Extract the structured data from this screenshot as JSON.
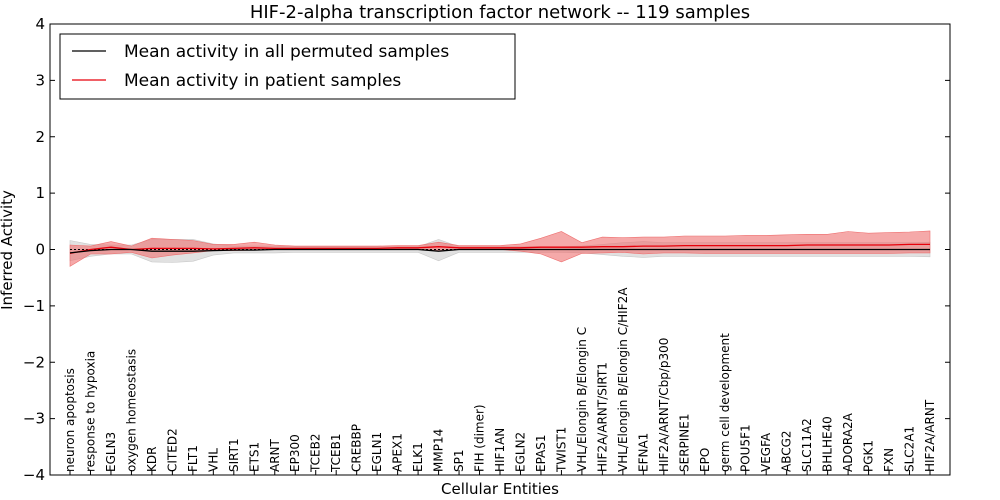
{
  "chart_data": {
    "type": "line",
    "title": "HIF-2-alpha transcription factor network -- 119 samples",
    "xlabel": "Cellular Entities",
    "ylabel": "Inferred Activity",
    "ylim": [
      -4,
      4
    ],
    "yticks": [
      "4",
      "3",
      "2",
      "1",
      "0",
      "−1",
      "−2",
      "−3",
      "−4"
    ],
    "ytick_values": [
      4,
      3,
      2,
      1,
      0,
      -1,
      -2,
      -3,
      -4
    ],
    "legend_position": "top-left",
    "categories": [
      "neuron apoptosis",
      "response to hypoxia",
      "EGLN3",
      "oxygen homeostasis",
      "KDR",
      "CITED2",
      "FLT1",
      "VHL",
      "SIRT1",
      "ETS1",
      "ARNT",
      "EP300",
      "TCEB2",
      "TCEB1",
      "CREBBP",
      "EGLN1",
      "APEX1",
      "ELK1",
      "MMP14",
      "SP1",
      "FIH (dimer)",
      "HIF1AN",
      "EGLN2",
      "EPAS1",
      "TWIST1",
      "VHL/Elongin B/Elongin C",
      "HIF2A/ARNT/SIRT1",
      "VHL/Elongin B/Elongin C/HIF2A",
      "EFNA1",
      "HIF2A/ARNT/Cbp/p300",
      "SERPINE1",
      "EPO",
      "germ cell development",
      "POU5F1",
      "VEGFA",
      "ABCG2",
      "SLC11A2",
      "BHLHE40",
      "ADORA2A",
      "PGK1",
      "FXN",
      "SLC2A1",
      "HIF2A/ARNT"
    ],
    "series": [
      {
        "name": "Mean activity in all permuted samples",
        "color": "#000000",
        "band_color": "#c8c8c8",
        "values": [
          -0.06,
          -0.02,
          0.0,
          0.0,
          -0.03,
          -0.03,
          -0.03,
          -0.02,
          -0.01,
          -0.01,
          0.0,
          0.0,
          0.0,
          0.0,
          0.0,
          0.0,
          0.0,
          0.0,
          -0.03,
          0.0,
          0.0,
          0.0,
          0.0,
          0.0,
          0.0,
          0.0,
          0.0,
          0.0,
          0.0,
          0.0,
          0.0,
          0.0,
          0.0,
          0.0,
          0.0,
          0.0,
          0.0,
          0.0,
          0.0,
          0.0,
          0.0,
          0.0,
          0.0
        ],
        "lower": [
          -0.2,
          -0.12,
          -0.08,
          -0.08,
          -0.22,
          -0.23,
          -0.21,
          -0.1,
          -0.06,
          -0.06,
          -0.06,
          -0.05,
          -0.05,
          -0.05,
          -0.05,
          -0.05,
          -0.05,
          -0.05,
          -0.2,
          -0.05,
          -0.05,
          -0.05,
          -0.05,
          -0.05,
          -0.05,
          -0.06,
          -0.09,
          -0.12,
          -0.14,
          -0.12,
          -0.12,
          -0.12,
          -0.12,
          -0.12,
          -0.12,
          -0.12,
          -0.12,
          -0.12,
          -0.12,
          -0.12,
          -0.12,
          -0.12,
          -0.13
        ],
        "upper": [
          0.16,
          0.09,
          0.08,
          0.08,
          0.18,
          0.18,
          0.18,
          0.1,
          0.06,
          0.06,
          0.06,
          0.05,
          0.05,
          0.05,
          0.05,
          0.05,
          0.05,
          0.05,
          0.18,
          0.05,
          0.05,
          0.05,
          0.05,
          0.05,
          0.05,
          0.06,
          0.09,
          0.12,
          0.14,
          0.12,
          0.12,
          0.12,
          0.12,
          0.12,
          0.12,
          0.12,
          0.12,
          0.12,
          0.12,
          0.12,
          0.12,
          0.12,
          0.13
        ]
      },
      {
        "name": "Mean activity in patient samples",
        "color": "#e8000b",
        "band_color": "#ee6f6f",
        "values": [
          -0.07,
          0.0,
          0.04,
          0.0,
          0.02,
          0.02,
          0.02,
          0.01,
          0.02,
          0.03,
          0.02,
          0.02,
          0.02,
          0.02,
          0.02,
          0.02,
          0.03,
          0.03,
          0.05,
          0.03,
          0.03,
          0.03,
          0.03,
          0.04,
          0.04,
          0.04,
          0.05,
          0.05,
          0.06,
          0.06,
          0.07,
          0.07,
          0.07,
          0.07,
          0.07,
          0.07,
          0.08,
          0.08,
          0.08,
          0.08,
          0.08,
          0.09,
          0.09
        ],
        "lower": [
          -0.3,
          -0.08,
          -0.08,
          -0.05,
          -0.15,
          -0.1,
          -0.06,
          -0.02,
          -0.02,
          -0.01,
          0.0,
          0.0,
          0.0,
          0.0,
          0.0,
          0.0,
          0.0,
          0.0,
          -0.03,
          0.0,
          0.0,
          0.0,
          -0.03,
          -0.08,
          -0.22,
          -0.07,
          -0.06,
          -0.05,
          -0.08,
          -0.06,
          -0.06,
          -0.07,
          -0.07,
          -0.07,
          -0.07,
          -0.07,
          -0.07,
          -0.07,
          -0.07,
          -0.07,
          -0.07,
          -0.06,
          -0.06
        ],
        "upper": [
          0.08,
          0.06,
          0.14,
          0.06,
          0.2,
          0.18,
          0.16,
          0.09,
          0.09,
          0.13,
          0.08,
          0.06,
          0.06,
          0.06,
          0.06,
          0.06,
          0.07,
          0.07,
          0.13,
          0.07,
          0.07,
          0.07,
          0.1,
          0.2,
          0.32,
          0.12,
          0.22,
          0.21,
          0.22,
          0.22,
          0.24,
          0.24,
          0.24,
          0.25,
          0.25,
          0.26,
          0.27,
          0.27,
          0.32,
          0.29,
          0.3,
          0.31,
          0.33
        ]
      }
    ]
  }
}
